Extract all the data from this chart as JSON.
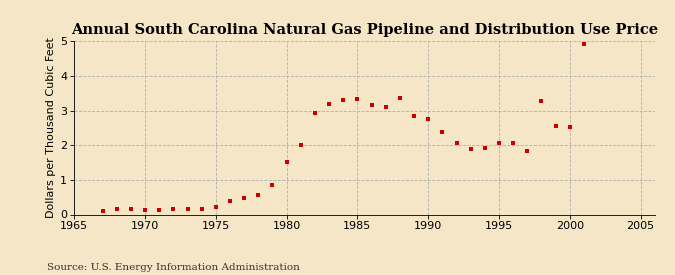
{
  "title": "Annual South Carolina Natural Gas Pipeline and Distribution Use Price",
  "ylabel": "Dollars per Thousand Cubic Feet",
  "source": "Source: U.S. Energy Information Administration",
  "background_color": "#f5e6c8",
  "plot_bg_color": "#f5e6c8",
  "grid_color": "#b0b0b0",
  "dot_color": "#cc0000",
  "xlim": [
    1965,
    2006
  ],
  "ylim": [
    0,
    5
  ],
  "xticks": [
    1965,
    1970,
    1975,
    1980,
    1985,
    1990,
    1995,
    2000,
    2005
  ],
  "yticks": [
    0,
    1,
    2,
    3,
    4,
    5
  ],
  "years": [
    1967,
    1968,
    1969,
    1970,
    1971,
    1972,
    1973,
    1974,
    1975,
    1976,
    1977,
    1978,
    1979,
    1980,
    1981,
    1982,
    1983,
    1984,
    1985,
    1986,
    1987,
    1988,
    1989,
    1990,
    1991,
    1992,
    1993,
    1994,
    1995,
    1996,
    1997,
    1998,
    1999,
    2000,
    2001
  ],
  "values": [
    0.1,
    0.15,
    0.15,
    0.14,
    0.14,
    0.15,
    0.15,
    0.15,
    0.22,
    0.4,
    0.48,
    0.55,
    0.85,
    1.52,
    2.02,
    2.93,
    3.18,
    3.3,
    3.32,
    3.15,
    3.1,
    3.37,
    2.83,
    2.75,
    2.38,
    2.06,
    1.88,
    1.93,
    2.05,
    2.07,
    1.82,
    3.28,
    2.55,
    2.53,
    4.92
  ],
  "title_fontsize": 10.5,
  "label_fontsize": 8,
  "tick_fontsize": 8,
  "source_fontsize": 7.5
}
